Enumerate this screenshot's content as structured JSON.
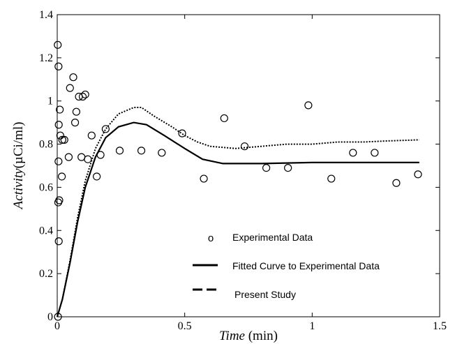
{
  "chart_data": {
    "type": "scatter",
    "xlabel": {
      "italic": "Time",
      "unit": " (min)"
    },
    "ylabel": {
      "italic": "Activity",
      "unit": "(µCi/ml)"
    },
    "xlim": [
      0,
      1.5
    ],
    "ylim": [
      0,
      1.4
    ],
    "x_ticks": [
      0,
      0.5,
      1,
      1.5
    ],
    "x_tick_labels": [
      "0",
      "0.5",
      "1",
      "1.5"
    ],
    "y_ticks": [
      0,
      0.2,
      0.4,
      0.6,
      0.8,
      1,
      1.2,
      1.4
    ],
    "y_tick_labels": [
      "0",
      "0.2",
      "0.4",
      "0.6",
      "0.8",
      "1",
      "1.2",
      "1.4"
    ],
    "grid": false,
    "legend_position": "bottom-center",
    "series": [
      {
        "name": "Experimental Data",
        "style": "open-circle",
        "color": "#000000",
        "points": [
          [
            0.002,
            1.26
          ],
          [
            0.005,
            1.16
          ],
          [
            0.005,
            0.72
          ],
          [
            0.006,
            0.89
          ],
          [
            0.008,
            0.54
          ],
          [
            0.004,
            0.53
          ],
          [
            0.006,
            0.35
          ],
          [
            0.003,
            0.0
          ],
          [
            0.01,
            0.96
          ],
          [
            0.012,
            0.84
          ],
          [
            0.02,
            0.82
          ],
          [
            0.028,
            0.82
          ],
          [
            0.018,
            0.65
          ],
          [
            0.045,
            0.74
          ],
          [
            0.05,
            1.06
          ],
          [
            0.063,
            1.11
          ],
          [
            0.07,
            0.9
          ],
          [
            0.075,
            0.95
          ],
          [
            0.085,
            1.02
          ],
          [
            0.1,
            1.02
          ],
          [
            0.11,
            1.03
          ],
          [
            0.095,
            0.74
          ],
          [
            0.12,
            0.73
          ],
          [
            0.135,
            0.84
          ],
          [
            0.155,
            0.65
          ],
          [
            0.17,
            0.75
          ],
          [
            0.19,
            0.87
          ],
          [
            0.245,
            0.77
          ],
          [
            0.33,
            0.77
          ],
          [
            0.41,
            0.76
          ],
          [
            0.49,
            0.85
          ],
          [
            0.575,
            0.64
          ],
          [
            0.655,
            0.92
          ],
          [
            0.735,
            0.79
          ],
          [
            0.82,
            0.69
          ],
          [
            0.905,
            0.69
          ],
          [
            0.985,
            0.98
          ],
          [
            1.075,
            0.64
          ],
          [
            1.16,
            0.76
          ],
          [
            1.245,
            0.76
          ],
          [
            1.33,
            0.62
          ],
          [
            1.415,
            0.66
          ]
        ]
      },
      {
        "name": "Fitted Curve to Experimental Data",
        "style": "solid-line",
        "color": "#000000",
        "points": [
          [
            0.0,
            0.0
          ],
          [
            0.02,
            0.08
          ],
          [
            0.05,
            0.25
          ],
          [
            0.08,
            0.44
          ],
          [
            0.11,
            0.6
          ],
          [
            0.15,
            0.74
          ],
          [
            0.19,
            0.83
          ],
          [
            0.24,
            0.88
          ],
          [
            0.3,
            0.9
          ],
          [
            0.35,
            0.89
          ],
          [
            0.42,
            0.84
          ],
          [
            0.5,
            0.78
          ],
          [
            0.57,
            0.73
          ],
          [
            0.65,
            0.71
          ],
          [
            0.8,
            0.71
          ],
          [
            1.0,
            0.715
          ],
          [
            1.2,
            0.715
          ],
          [
            1.42,
            0.715
          ]
        ]
      },
      {
        "name": "Present Study",
        "style": "dashed-line",
        "color": "#000000",
        "points": [
          [
            0.0,
            0.0
          ],
          [
            0.02,
            0.08
          ],
          [
            0.05,
            0.26
          ],
          [
            0.08,
            0.46
          ],
          [
            0.11,
            0.63
          ],
          [
            0.15,
            0.78
          ],
          [
            0.19,
            0.87
          ],
          [
            0.24,
            0.94
          ],
          [
            0.3,
            0.97
          ],
          [
            0.33,
            0.97
          ],
          [
            0.38,
            0.93
          ],
          [
            0.45,
            0.88
          ],
          [
            0.5,
            0.84
          ],
          [
            0.55,
            0.81
          ],
          [
            0.6,
            0.79
          ],
          [
            0.7,
            0.78
          ],
          [
            0.8,
            0.79
          ],
          [
            0.9,
            0.8
          ],
          [
            1.0,
            0.8
          ],
          [
            1.1,
            0.81
          ],
          [
            1.2,
            0.81
          ],
          [
            1.3,
            0.815
          ],
          [
            1.42,
            0.82
          ]
        ]
      }
    ],
    "legend": [
      {
        "marker": "o",
        "label": "Experimental Data"
      },
      {
        "marker": "solid",
        "label": "Fitted Curve to Experimental Data"
      },
      {
        "marker": "dashed",
        "label": "Present Study"
      }
    ]
  }
}
